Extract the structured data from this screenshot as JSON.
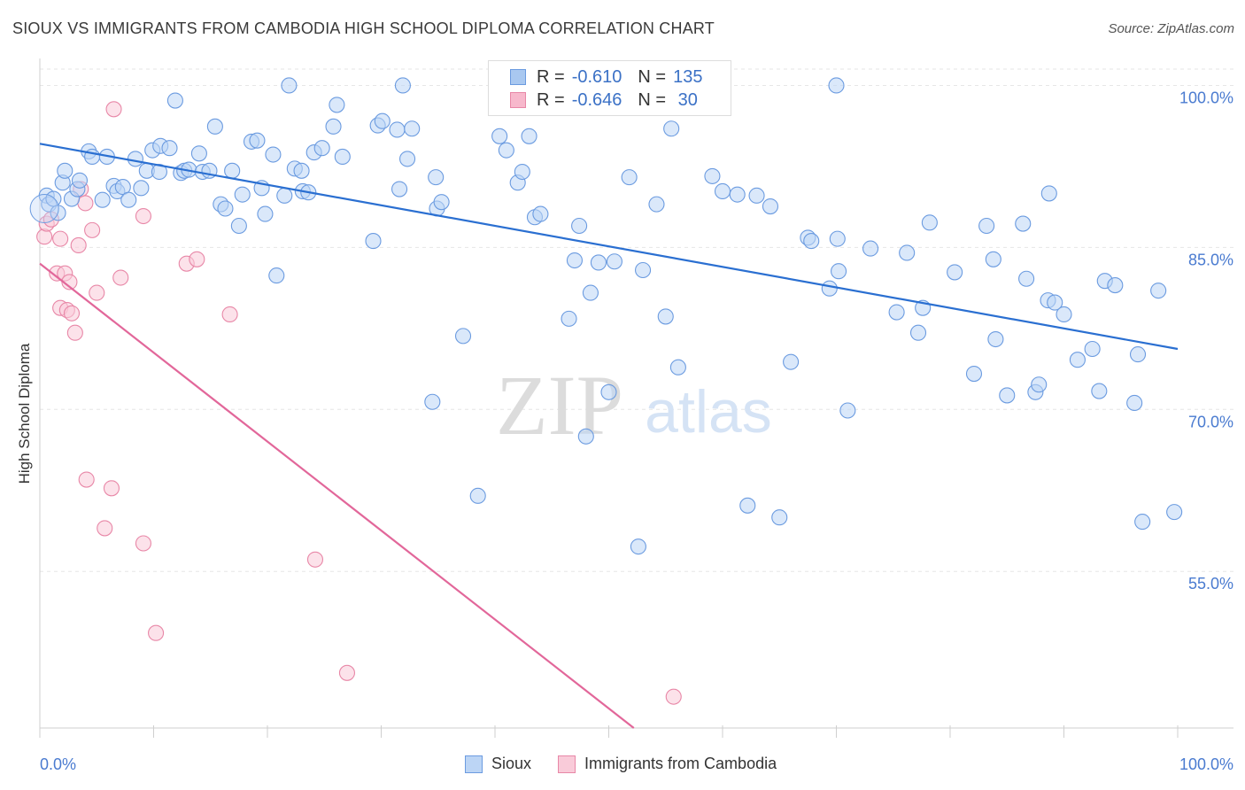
{
  "title": "SIOUX VS IMMIGRANTS FROM CAMBODIA HIGH SCHOOL DIPLOMA CORRELATION CHART",
  "source": "Source: ZipAtlas.com",
  "watermark": {
    "zip": "ZIP",
    "atlas": "atlas"
  },
  "legend": {
    "rows": [
      {
        "r_label": "R =",
        "r_value": "-0.610",
        "n_label": "N =",
        "n_value": "135",
        "fill": "#a9c8f0",
        "stroke": "#6b9be0"
      },
      {
        "r_label": "R =",
        "r_value": "-0.646",
        "n_label": "N =",
        "n_value": " 30",
        "fill": "#f7b8cc",
        "stroke": "#e887a7"
      }
    ]
  },
  "bottom_legend": [
    {
      "label": "Sioux",
      "fill": "#bcd5f5",
      "stroke": "#6b9be0"
    },
    {
      "label": "Immigrants from Cambodia",
      "fill": "#f9cbd9",
      "stroke": "#e887a7"
    }
  ],
  "chart_data": {
    "type": "scatter",
    "title": "SIOUX VS IMMIGRANTS FROM CAMBODIA HIGH SCHOOL DIPLOMA CORRELATION CHART",
    "xlabel": "",
    "ylabel": "High School Diploma",
    "xlim": [
      0,
      100
    ],
    "ylim": [
      40.5,
      102.5
    ],
    "x_tick_labels": [
      "0.0%",
      "100.0%"
    ],
    "y_ticks": [
      100,
      85,
      70,
      55
    ],
    "y_tick_labels": [
      "100.0%",
      "85.0%",
      "70.0%",
      "55.0%"
    ],
    "grid": true,
    "series": [
      {
        "name": "Sioux",
        "color": "#6b9be0",
        "fill": "#bcd5f5",
        "trend": {
          "x0": 0,
          "y0": 94.6,
          "x1": 100,
          "y1": 75.6,
          "color": "#2a6fd1"
        },
        "points": [
          [
            0.6,
            89.8
          ],
          [
            0.8,
            89.0
          ],
          [
            1.2,
            89.5
          ],
          [
            1.6,
            88.2
          ],
          [
            2.0,
            91.0
          ],
          [
            2.2,
            92.1
          ],
          [
            2.8,
            89.5
          ],
          [
            3.3,
            90.4
          ],
          [
            3.5,
            91.2
          ],
          [
            4.3,
            93.9
          ],
          [
            4.6,
            93.4
          ],
          [
            5.5,
            89.4
          ],
          [
            5.9,
            93.4
          ],
          [
            6.5,
            90.7
          ],
          [
            6.8,
            90.2
          ],
          [
            7.3,
            90.6
          ],
          [
            7.8,
            89.4
          ],
          [
            8.4,
            93.2
          ],
          [
            8.9,
            90.5
          ],
          [
            9.4,
            92.1
          ],
          [
            9.9,
            94.0
          ],
          [
            10.5,
            92.0
          ],
          [
            10.6,
            94.4
          ],
          [
            11.4,
            94.2
          ],
          [
            11.9,
            98.6
          ],
          [
            12.4,
            91.9
          ],
          [
            12.7,
            92.1
          ],
          [
            13.1,
            92.2
          ],
          [
            14.0,
            93.7
          ],
          [
            14.3,
            92.0
          ],
          [
            14.9,
            92.1
          ],
          [
            15.4,
            96.2
          ],
          [
            15.9,
            89.0
          ],
          [
            16.3,
            88.6
          ],
          [
            16.9,
            92.1
          ],
          [
            17.5,
            87.0
          ],
          [
            17.8,
            89.9
          ],
          [
            18.6,
            94.8
          ],
          [
            19.1,
            94.9
          ],
          [
            19.5,
            90.5
          ],
          [
            19.8,
            88.1
          ],
          [
            20.5,
            93.6
          ],
          [
            20.8,
            82.4
          ],
          [
            21.5,
            89.8
          ],
          [
            21.9,
            100.0
          ],
          [
            22.4,
            92.3
          ],
          [
            23.0,
            92.1
          ],
          [
            23.1,
            90.2
          ],
          [
            23.6,
            90.1
          ],
          [
            24.1,
            93.8
          ],
          [
            24.8,
            94.2
          ],
          [
            25.8,
            96.2
          ],
          [
            26.1,
            98.2
          ],
          [
            26.6,
            93.4
          ],
          [
            29.3,
            85.6
          ],
          [
            29.7,
            96.3
          ],
          [
            30.1,
            96.7
          ],
          [
            31.4,
            95.9
          ],
          [
            31.6,
            90.4
          ],
          [
            31.9,
            100.0
          ],
          [
            32.3,
            93.2
          ],
          [
            32.7,
            96.0
          ],
          [
            34.8,
            91.5
          ],
          [
            34.9,
            88.6
          ],
          [
            35.3,
            89.2
          ],
          [
            34.5,
            70.7
          ],
          [
            37.2,
            76.8
          ],
          [
            38.5,
            62.0
          ],
          [
            40.4,
            95.3
          ],
          [
            41.0,
            94.0
          ],
          [
            42.0,
            91.0
          ],
          [
            42.4,
            92.0
          ],
          [
            43.0,
            95.3
          ],
          [
            43.5,
            87.8
          ],
          [
            44.0,
            88.1
          ],
          [
            45.8,
            100.0
          ],
          [
            46.5,
            78.4
          ],
          [
            47.0,
            83.8
          ],
          [
            47.4,
            87.0
          ],
          [
            48.0,
            67.5
          ],
          [
            48.4,
            80.8
          ],
          [
            49.1,
            83.6
          ],
          [
            50.0,
            71.6
          ],
          [
            50.5,
            83.7
          ],
          [
            51.8,
            91.5
          ],
          [
            52.6,
            57.3
          ],
          [
            53.0,
            82.9
          ],
          [
            54.2,
            89.0
          ],
          [
            55.0,
            78.6
          ],
          [
            55.5,
            96.0
          ],
          [
            56.1,
            73.9
          ],
          [
            59.1,
            91.6
          ],
          [
            60.0,
            90.2
          ],
          [
            61.3,
            89.9
          ],
          [
            62.2,
            61.1
          ],
          [
            63.0,
            89.8
          ],
          [
            64.2,
            88.8
          ],
          [
            65.0,
            60.0
          ],
          [
            66.0,
            74.4
          ],
          [
            67.5,
            85.9
          ],
          [
            67.8,
            85.6
          ],
          [
            69.4,
            81.2
          ],
          [
            70.1,
            85.8
          ],
          [
            70.2,
            82.8
          ],
          [
            71.0,
            69.9
          ],
          [
            73.0,
            84.9
          ],
          [
            75.3,
            79.0
          ],
          [
            76.2,
            84.5
          ],
          [
            77.2,
            77.1
          ],
          [
            77.6,
            79.4
          ],
          [
            78.2,
            87.3
          ],
          [
            80.4,
            82.7
          ],
          [
            82.1,
            73.3
          ],
          [
            83.2,
            87.0
          ],
          [
            83.8,
            83.9
          ],
          [
            84.0,
            76.5
          ],
          [
            85.0,
            71.3
          ],
          [
            86.4,
            87.2
          ],
          [
            86.7,
            82.1
          ],
          [
            87.5,
            71.6
          ],
          [
            87.8,
            72.3
          ],
          [
            88.6,
            80.1
          ],
          [
            88.7,
            90.0
          ],
          [
            89.2,
            79.9
          ],
          [
            90.0,
            78.8
          ],
          [
            91.2,
            74.6
          ],
          [
            92.5,
            75.6
          ],
          [
            93.1,
            71.7
          ],
          [
            93.6,
            81.9
          ],
          [
            94.5,
            81.5
          ],
          [
            96.2,
            70.6
          ],
          [
            96.5,
            75.1
          ],
          [
            96.9,
            59.6
          ],
          [
            98.3,
            81.0
          ],
          [
            99.7,
            60.5
          ],
          [
            70.0,
            100.0
          ]
        ]
      },
      {
        "name": "Immigrants from Cambodia",
        "color": "#e887a7",
        "fill": "#f9cbd9",
        "trend": {
          "x0": 0,
          "y0": 83.5,
          "x1": 52.2,
          "y1": 40.5,
          "color": "#e2679a"
        },
        "points": [
          [
            0.4,
            86.0
          ],
          [
            0.6,
            87.2
          ],
          [
            1.0,
            87.6
          ],
          [
            1.5,
            82.6
          ],
          [
            1.8,
            79.4
          ],
          [
            1.8,
            85.8
          ],
          [
            2.2,
            82.6
          ],
          [
            2.4,
            79.2
          ],
          [
            2.6,
            81.8
          ],
          [
            2.8,
            78.9
          ],
          [
            3.1,
            77.1
          ],
          [
            3.4,
            85.2
          ],
          [
            3.6,
            90.4
          ],
          [
            4.0,
            89.1
          ],
          [
            4.1,
            63.5
          ],
          [
            4.6,
            86.6
          ],
          [
            5.0,
            80.8
          ],
          [
            5.7,
            59.0
          ],
          [
            6.3,
            62.7
          ],
          [
            6.5,
            97.8
          ],
          [
            7.1,
            82.2
          ],
          [
            9.1,
            87.9
          ],
          [
            9.1,
            57.6
          ],
          [
            10.2,
            49.3
          ],
          [
            12.9,
            83.5
          ],
          [
            13.8,
            83.9
          ],
          [
            16.7,
            78.8
          ],
          [
            24.2,
            56.1
          ],
          [
            27.0,
            45.6
          ],
          [
            55.7,
            43.4
          ]
        ]
      }
    ]
  }
}
